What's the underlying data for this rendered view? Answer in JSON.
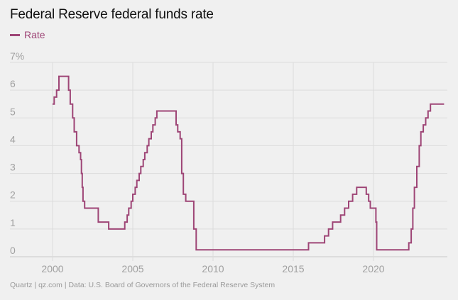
{
  "colors": {
    "line": "#9e4576",
    "grid": "#dcdcdc",
    "axis_text": "#a0a0a0",
    "title": "#111111"
  },
  "chart_data": {
    "type": "line",
    "title": "Federal Reserve federal funds rate",
    "xlabel": "",
    "ylabel": "",
    "ylim": [
      0,
      7
    ],
    "xlim": [
      1998,
      2024.5
    ],
    "grid": true,
    "legend_position": "top-left",
    "y_ticks": [
      0,
      1,
      2,
      3,
      4,
      5,
      6,
      7
    ],
    "y_tick_labels": [
      "0",
      "1",
      "2",
      "3",
      "4",
      "5",
      "6",
      "7%"
    ],
    "x_ticks": [
      2000,
      2005,
      2010,
      2015,
      2020
    ],
    "x_tick_labels": [
      "2000",
      "2005",
      "2010",
      "2015",
      "2020"
    ],
    "series": [
      {
        "name": "Rate",
        "step": true,
        "points": [
          [
            2000.0,
            5.5
          ],
          [
            2000.1,
            5.75
          ],
          [
            2000.25,
            6.0
          ],
          [
            2000.4,
            6.5
          ],
          [
            2001.0,
            6.0
          ],
          [
            2001.1,
            5.5
          ],
          [
            2001.25,
            5.0
          ],
          [
            2001.35,
            4.5
          ],
          [
            2001.5,
            4.0
          ],
          [
            2001.65,
            3.75
          ],
          [
            2001.75,
            3.5
          ],
          [
            2001.8,
            3.0
          ],
          [
            2001.85,
            2.5
          ],
          [
            2001.9,
            2.0
          ],
          [
            2002.0,
            1.75
          ],
          [
            2002.85,
            1.25
          ],
          [
            2003.5,
            1.0
          ],
          [
            2004.5,
            1.25
          ],
          [
            2004.65,
            1.5
          ],
          [
            2004.75,
            1.75
          ],
          [
            2004.9,
            2.0
          ],
          [
            2005.0,
            2.25
          ],
          [
            2005.15,
            2.5
          ],
          [
            2005.25,
            2.75
          ],
          [
            2005.4,
            3.0
          ],
          [
            2005.5,
            3.25
          ],
          [
            2005.65,
            3.5
          ],
          [
            2005.75,
            3.75
          ],
          [
            2005.9,
            4.0
          ],
          [
            2006.0,
            4.25
          ],
          [
            2006.15,
            4.5
          ],
          [
            2006.25,
            4.75
          ],
          [
            2006.4,
            5.0
          ],
          [
            2006.5,
            5.25
          ],
          [
            2007.7,
            4.75
          ],
          [
            2007.8,
            4.5
          ],
          [
            2007.95,
            4.25
          ],
          [
            2008.05,
            3.0
          ],
          [
            2008.15,
            2.25
          ],
          [
            2008.3,
            2.0
          ],
          [
            2008.8,
            1.0
          ],
          [
            2008.95,
            0.25
          ],
          [
            2015.95,
            0.5
          ],
          [
            2016.95,
            0.75
          ],
          [
            2017.2,
            1.0
          ],
          [
            2017.45,
            1.25
          ],
          [
            2017.95,
            1.5
          ],
          [
            2018.2,
            1.75
          ],
          [
            2018.45,
            2.0
          ],
          [
            2018.7,
            2.25
          ],
          [
            2018.95,
            2.5
          ],
          [
            2019.55,
            2.25
          ],
          [
            2019.7,
            2.0
          ],
          [
            2019.8,
            1.75
          ],
          [
            2020.15,
            1.25
          ],
          [
            2020.2,
            0.25
          ],
          [
            2022.2,
            0.5
          ],
          [
            2022.35,
            1.0
          ],
          [
            2022.45,
            1.75
          ],
          [
            2022.55,
            2.5
          ],
          [
            2022.7,
            3.25
          ],
          [
            2022.85,
            4.0
          ],
          [
            2022.95,
            4.5
          ],
          [
            2023.1,
            4.75
          ],
          [
            2023.25,
            5.0
          ],
          [
            2023.4,
            5.25
          ],
          [
            2023.55,
            5.5
          ],
          [
            2024.4,
            5.5
          ]
        ]
      }
    ]
  },
  "footer": "Quartz | qz.com | Data: U.S. Board of Governors of the Federal Reserve System"
}
